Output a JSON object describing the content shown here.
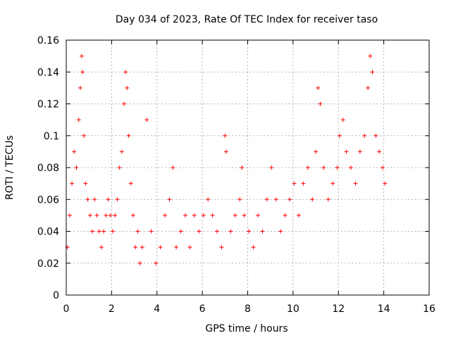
{
  "chart_data": {
    "type": "scatter",
    "title": "Day 034 of 2023, Rate Of TEC Index for receiver taso",
    "xlabel": "GPS time / hours",
    "ylabel": "ROTI / TECUs",
    "xlim": [
      0,
      16
    ],
    "ylim": [
      0,
      0.16
    ],
    "xticks": [
      "0",
      "2",
      "4",
      "6",
      "8",
      "10",
      "12",
      "14",
      "16"
    ],
    "yticks": [
      "0",
      "0.02",
      "0.04",
      "0.06",
      "0.08",
      "0.1",
      "0.12",
      "0.14",
      "0.16"
    ],
    "grid": true,
    "legend": "none",
    "marker": "plus",
    "color": "#ff0000",
    "series": [
      {
        "x": [
          0.05,
          0.15,
          0.25,
          0.35,
          0.45,
          0.55,
          0.62,
          0.68,
          0.72,
          0.78,
          0.85,
          0.95,
          1.05,
          1.15,
          1.25,
          1.35,
          1.45,
          1.55,
          1.65,
          1.75,
          1.85,
          1.95,
          2.05,
          2.15,
          2.25,
          2.35,
          2.45,
          2.55,
          2.62,
          2.68,
          2.75,
          2.85,
          2.95,
          3.05,
          3.15,
          3.25,
          3.35,
          3.55,
          3.75,
          3.95,
          4.15,
          4.35,
          4.55,
          4.7,
          4.85,
          5.05,
          5.25,
          5.45,
          5.65,
          5.85,
          6.05,
          6.25,
          6.45,
          6.65,
          6.85,
          7.0,
          7.05,
          7.25,
          7.45,
          7.65,
          7.75,
          7.85,
          8.05,
          8.25,
          8.45,
          8.65,
          8.85,
          9.05,
          9.25,
          9.45,
          9.65,
          9.85,
          10.05,
          10.25,
          10.45,
          10.65,
          10.85,
          11.0,
          11.1,
          11.2,
          11.35,
          11.55,
          11.75,
          11.95,
          12.05,
          12.2,
          12.35,
          12.55,
          12.75,
          12.95,
          13.15,
          13.3,
          13.4,
          13.5,
          13.65,
          13.8,
          13.95,
          14.05
        ],
        "y": [
          0.03,
          0.05,
          0.07,
          0.09,
          0.08,
          0.11,
          0.13,
          0.15,
          0.14,
          0.1,
          0.07,
          0.06,
          0.05,
          0.04,
          0.06,
          0.05,
          0.04,
          0.03,
          0.04,
          0.05,
          0.06,
          0.05,
          0.04,
          0.05,
          0.06,
          0.08,
          0.09,
          0.12,
          0.14,
          0.13,
          0.1,
          0.07,
          0.05,
          0.03,
          0.04,
          0.02,
          0.03,
          0.11,
          0.04,
          0.02,
          0.03,
          0.05,
          0.06,
          0.08,
          0.03,
          0.04,
          0.05,
          0.03,
          0.05,
          0.04,
          0.05,
          0.06,
          0.05,
          0.04,
          0.03,
          0.1,
          0.09,
          0.04,
          0.05,
          0.06,
          0.08,
          0.05,
          0.04,
          0.03,
          0.05,
          0.04,
          0.06,
          0.08,
          0.06,
          0.04,
          0.05,
          0.06,
          0.07,
          0.05,
          0.07,
          0.08,
          0.06,
          0.09,
          0.13,
          0.12,
          0.08,
          0.06,
          0.07,
          0.08,
          0.1,
          0.11,
          0.09,
          0.08,
          0.07,
          0.09,
          0.1,
          0.13,
          0.15,
          0.14,
          0.1,
          0.09,
          0.08,
          0.07
        ]
      }
    ]
  }
}
